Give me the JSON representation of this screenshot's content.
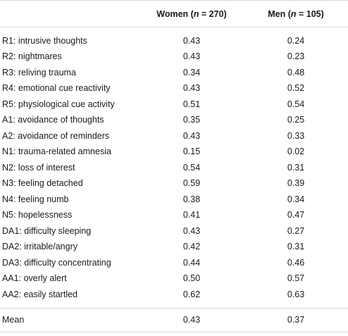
{
  "header": {
    "col_label": "",
    "women_prefix": "Women (",
    "women_n": "n",
    "women_suffix": " = 270)",
    "men_prefix": "Men (",
    "men_n": "n",
    "men_suffix": " = 105)"
  },
  "rows": [
    {
      "label": "R1: intrusive thoughts",
      "women": "0.43",
      "men": "0.24"
    },
    {
      "label": "R2: nightmares",
      "women": "0.43",
      "men": "0.23"
    },
    {
      "label": "R3: reliving trauma",
      "women": "0.34",
      "men": "0.48"
    },
    {
      "label": "R4: emotional cue reactivity",
      "women": "0.43",
      "men": "0.52"
    },
    {
      "label": "R5: physiological cue activity",
      "women": "0.51",
      "men": "0.54"
    },
    {
      "label": "A1: avoidance of thoughts",
      "women": "0.35",
      "men": "0.25"
    },
    {
      "label": "A2: avoidance of reminders",
      "women": "0.43",
      "men": "0.33"
    },
    {
      "label": "N1: trauma-related amnesia",
      "women": "0.15",
      "men": "0.02"
    },
    {
      "label": "N2: loss of interest",
      "women": "0.54",
      "men": "0.31"
    },
    {
      "label": "N3: feeling detached",
      "women": "0.59",
      "men": "0.39"
    },
    {
      "label": "N4: feeling numb",
      "women": "0.38",
      "men": "0.34"
    },
    {
      "label": "N5: hopelessness",
      "women": "0.41",
      "men": "0.47"
    },
    {
      "label": "DA1: difficulty sleeping",
      "women": "0.43",
      "men": "0.27"
    },
    {
      "label": "DA2: irritable/angry",
      "women": "0.42",
      "men": "0.31"
    },
    {
      "label": "DA3: difficulty concentrating",
      "women": "0.44",
      "men": "0.46"
    },
    {
      "label": "AA1: overly alert",
      "women": "0.50",
      "men": "0.57"
    },
    {
      "label": "AA2: easily startled",
      "women": "0.62",
      "men": "0.63"
    }
  ],
  "mean": {
    "label": "Mean",
    "women": "0.43",
    "men": "0.37"
  }
}
